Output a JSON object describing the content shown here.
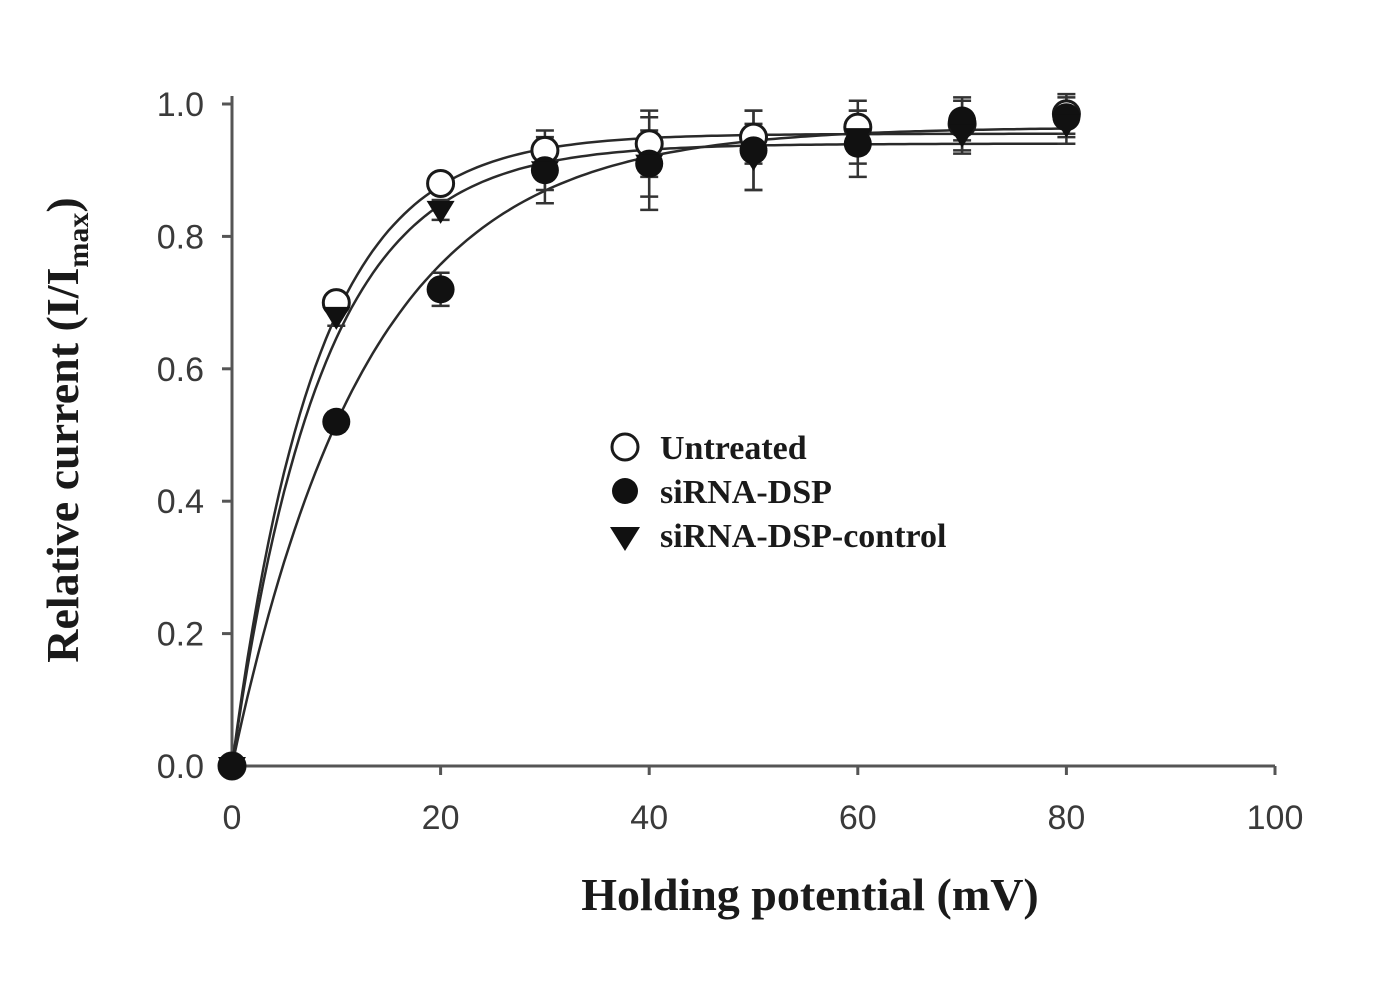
{
  "chart_data": {
    "type": "scatter",
    "xlabel": "Holding potential (mV)",
    "ylabel": "Relative current (I/I",
    "ylabel_subscript": "max",
    "ylabel_close": ")",
    "xlim": [
      0,
      100
    ],
    "ylim": [
      0,
      1.0
    ],
    "x_ticks": [
      0,
      20,
      40,
      60,
      80,
      100
    ],
    "x_tick_labels": [
      "0",
      "20",
      "40",
      "60",
      "80",
      "100"
    ],
    "y_ticks": [
      0,
      0.2,
      0.4,
      0.6,
      0.8,
      1.0
    ],
    "y_tick_labels": [
      "0.0",
      "0.2",
      "0.4",
      "0.6",
      "0.8",
      "1.0"
    ],
    "grid": false,
    "legend_position": "center-right",
    "series": [
      {
        "name": "Untreated",
        "marker": "open-circle",
        "x": [
          0,
          10,
          20,
          30,
          40,
          50,
          60,
          70,
          80
        ],
        "y": [
          0.0,
          0.7,
          0.88,
          0.93,
          0.94,
          0.95,
          0.965,
          0.97,
          0.985
        ],
        "err": [
          0,
          0.01,
          0.015,
          0.03,
          0.05,
          0.04,
          0.04,
          0.04,
          0.03
        ],
        "fit": {
          "a": 0.955,
          "tau": 8.0
        }
      },
      {
        "name": "siRNA-DSP",
        "marker": "filled-circle",
        "x": [
          0,
          10,
          20,
          30,
          40,
          50,
          60,
          70,
          80
        ],
        "y": [
          0.0,
          0.52,
          0.72,
          0.9,
          0.91,
          0.93,
          0.94,
          0.975,
          0.98
        ],
        "err": [
          0,
          0.015,
          0.025,
          0.05,
          0.07,
          0.06,
          0.05,
          0.03,
          0.03
        ],
        "fit": {
          "a": 0.965,
          "tau": 13.0
        }
      },
      {
        "name": "siRNA-DSP-control",
        "marker": "filled-triangle-down",
        "x": [
          0,
          10,
          20,
          30,
          40,
          50,
          60,
          70,
          80
        ],
        "y": [
          0.0,
          0.68,
          0.84,
          0.9,
          0.91,
          0.92,
          0.95,
          0.955,
          0.97
        ],
        "err": [
          0,
          0.015,
          0.015,
          0.03,
          0.05,
          0.05,
          0.04,
          0.03,
          0.03
        ],
        "fit": {
          "a": 0.94,
          "tau": 8.6
        }
      }
    ]
  }
}
